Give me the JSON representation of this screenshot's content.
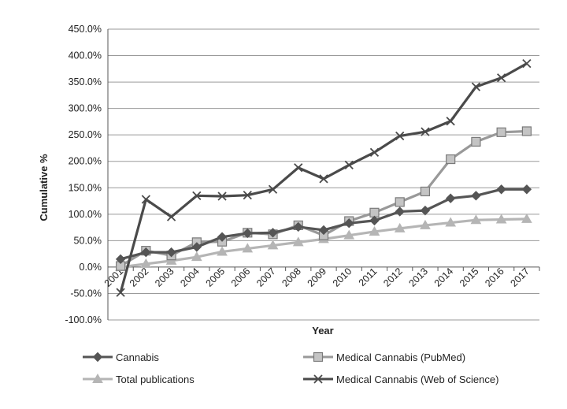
{
  "chart_data": {
    "type": "line",
    "title": "",
    "xlabel": "Year",
    "ylabel": "Cumulative %",
    "categories": [
      "2001",
      "2002",
      "2003",
      "2004",
      "2005",
      "2006",
      "2007",
      "2008",
      "2009",
      "2010",
      "2011",
      "2012",
      "2013",
      "2014",
      "2015",
      "2016",
      "2017"
    ],
    "ylim": [
      -100,
      450
    ],
    "yticks": [
      -100,
      -50,
      0,
      50,
      100,
      150,
      200,
      250,
      300,
      350,
      400,
      450
    ],
    "ytick_labels": [
      "-100.0%",
      "-50.0%",
      "0.0%",
      "50.0%",
      "100.0%",
      "150.0%",
      "200.0%",
      "250.0%",
      "300.0%",
      "350.0%",
      "400.0%",
      "450.0%"
    ],
    "grid": "horizontal",
    "legend_position": "bottom",
    "series": [
      {
        "name": "Cannabis",
        "marker": "diamond",
        "color": "#555555",
        "values": [
          15,
          28,
          28,
          38,
          57,
          64,
          65,
          76,
          70,
          83,
          88,
          105,
          107,
          130,
          135,
          147,
          147
        ]
      },
      {
        "name": "Medical Cannabis (PubMed)",
        "marker": "square",
        "color": "#999999",
        "values": [
          2,
          31,
          22,
          47,
          48,
          65,
          62,
          79,
          60,
          87,
          103,
          123,
          143,
          204,
          237,
          255,
          257
        ]
      },
      {
        "name": "Total publications",
        "marker": "triangle",
        "color": "#b5b5b5",
        "values": [
          0,
          6,
          12,
          19,
          29,
          35,
          41,
          47,
          53,
          60,
          67,
          73,
          79,
          84,
          89,
          90,
          91
        ]
      },
      {
        "name": "Medical Cannabis (Web of Science)",
        "marker": "x",
        "color": "#4a4a4a",
        "values": [
          -48,
          128,
          95,
          135,
          134,
          136,
          147,
          188,
          167,
          193,
          217,
          248,
          256,
          276,
          341,
          358,
          385
        ]
      }
    ]
  }
}
